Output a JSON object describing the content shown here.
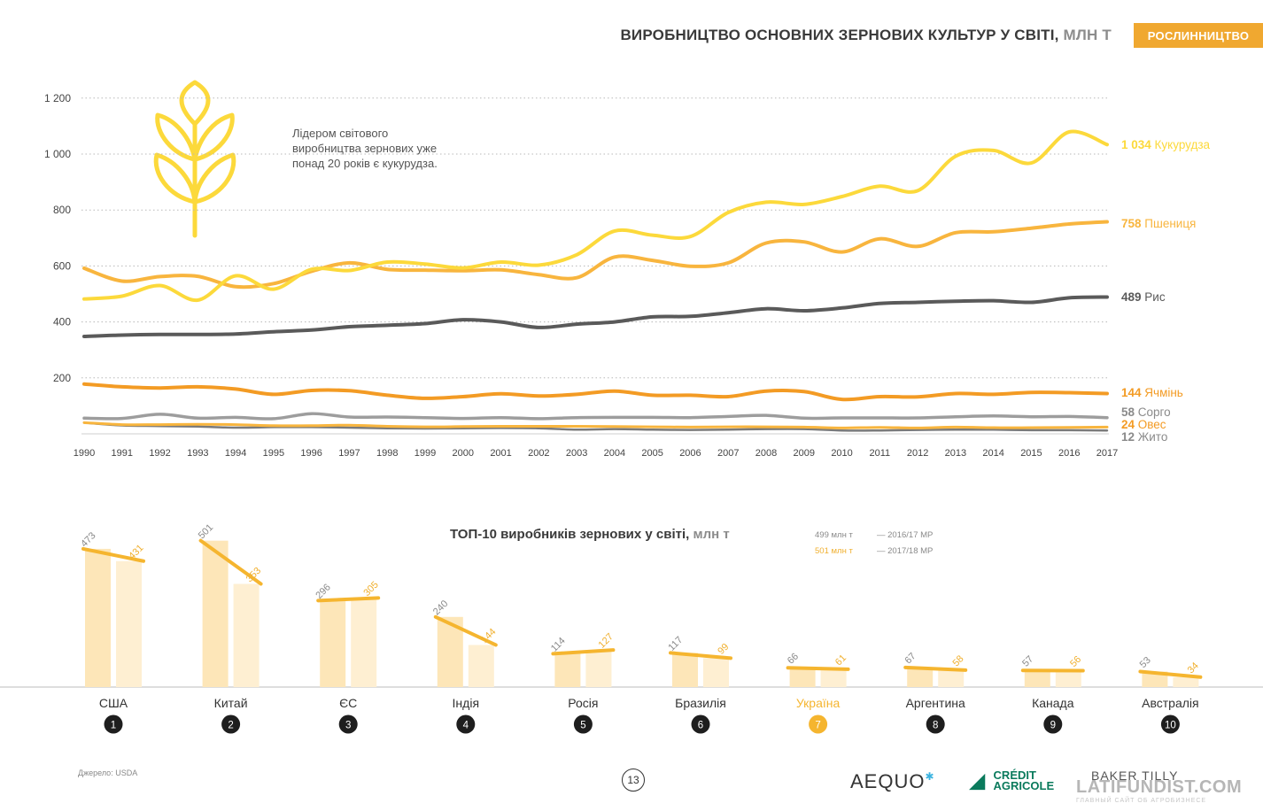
{
  "header": {
    "title": "ВИРОБНИЦТВО ОСНОВНИХ ЗЕРНОВИХ КУЛЬТУР У СВІТІ, ",
    "unit": "МЛН Т",
    "section_badge": "РОСЛИННИЦТВО"
  },
  "note": "Лідером світового виробництва зернових уже понад 20 років є кукурудза.",
  "icon": "wheat-icon",
  "colors": {
    "corn": "#fcd93b",
    "wheat": "#f8b53e",
    "rice": "#5a5a5a",
    "barley": "#f39b24",
    "sorghum": "#9d9d9d",
    "oats": "#f8b53e",
    "rye": "#7a7a7a",
    "bar_fill": "#fde3b0",
    "bar_fill_light": "#fff1d6",
    "accent": "#f0a830",
    "gray_label": "#8a8a8a"
  },
  "chart_data": [
    {
      "type": "line",
      "title": "ВИРОБНИЦТВО ОСНОВНИХ ЗЕРНОВИХ КУЛЬТУР У СВІТІ, МЛН Т",
      "x": [
        1990,
        1991,
        1992,
        1993,
        1994,
        1995,
        1996,
        1997,
        1998,
        1999,
        2000,
        2001,
        2002,
        2003,
        2004,
        2005,
        2006,
        2007,
        2008,
        2009,
        2010,
        2011,
        2012,
        2013,
        2014,
        2015,
        2016,
        2017
      ],
      "y_ticks": [
        "200",
        "400",
        "600",
        "800",
        "1 000",
        "1 200"
      ],
      "y_tick_values": [
        200,
        400,
        600,
        800,
        1000,
        1200
      ],
      "ylim": [
        0,
        1200
      ],
      "grid": "dotted horizontal",
      "series": [
        {
          "key": "corn",
          "name": "Кукурудза",
          "end_label_value": "1 034",
          "values": [
            482,
            492,
            530,
            478,
            565,
            517,
            588,
            584,
            614,
            607,
            593,
            614,
            603,
            640,
            725,
            710,
            705,
            791,
            828,
            820,
            848,
            885,
            869,
            992,
            1013,
            968,
            1079,
            1034
          ]
        },
        {
          "key": "wheat",
          "name": "Пшениця",
          "end_label_value": "758",
          "values": [
            592,
            546,
            562,
            563,
            526,
            537,
            581,
            611,
            588,
            585,
            583,
            586,
            569,
            558,
            632,
            620,
            599,
            611,
            682,
            686,
            650,
            697,
            670,
            719,
            722,
            735,
            750,
            758
          ]
        },
        {
          "key": "rice",
          "name": "Рис",
          "end_label_value": "489",
          "values": [
            348,
            353,
            355,
            355,
            357,
            365,
            371,
            383,
            388,
            394,
            408,
            400,
            380,
            392,
            400,
            418,
            420,
            433,
            447,
            440,
            450,
            466,
            470,
            474,
            476,
            470,
            486,
            489
          ]
        },
        {
          "key": "barley",
          "name": "Ячмінь",
          "end_label_value": "144",
          "values": [
            178,
            168,
            164,
            168,
            160,
            141,
            155,
            154,
            138,
            127,
            133,
            143,
            135,
            141,
            153,
            138,
            138,
            133,
            153,
            151,
            123,
            133,
            132,
            144,
            141,
            148,
            147,
            144
          ]
        },
        {
          "key": "sorghum",
          "name": "Сорго",
          "end_label_value": "58",
          "values": [
            56,
            55,
            70,
            56,
            59,
            54,
            72,
            60,
            60,
            58,
            55,
            58,
            54,
            58,
            59,
            59,
            58,
            62,
            66,
            56,
            57,
            57,
            57,
            61,
            64,
            61,
            62,
            58
          ]
        },
        {
          "key": "oats",
          "name": "Овес",
          "end_label_value": "24",
          "values": [
            40,
            33,
            33,
            34,
            33,
            29,
            29,
            31,
            27,
            25,
            26,
            27,
            27,
            27,
            26,
            25,
            24,
            25,
            25,
            24,
            21,
            23,
            21,
            24,
            22,
            22,
            23,
            24
          ]
        },
        {
          "key": "rye",
          "name": "Жито",
          "end_label_value": "12",
          "values": [
            40,
            30,
            28,
            26,
            22,
            24,
            24,
            22,
            20,
            19,
            20,
            21,
            20,
            15,
            17,
            15,
            14,
            15,
            17,
            17,
            12,
            12,
            14,
            15,
            15,
            13,
            13,
            12
          ]
        }
      ]
    },
    {
      "type": "bar",
      "title": "ТОП-10 виробників зернових у світі, ",
      "title_unit": "млн т",
      "legend": [
        {
          "value_label": "499 млн т",
          "period": "— 2016/17 МР"
        },
        {
          "value_label": "501 млн т",
          "period": "— 2017/18 МР"
        }
      ],
      "categories": [
        "США",
        "Китай",
        "ЄС",
        "Індія",
        "Росія",
        "Бразилія",
        "Україна",
        "Аргентина",
        "Канада",
        "Австралія"
      ],
      "ranks": [
        "1",
        "2",
        "3",
        "4",
        "5",
        "6",
        "7",
        "8",
        "9",
        "10"
      ],
      "highlight": "Україна",
      "series": [
        {
          "period": "2016/17 МР",
          "values": [
            473,
            501,
            296,
            240,
            114,
            117,
            66,
            67,
            57,
            53
          ]
        },
        {
          "period": "2017/18 МР",
          "values": [
            431,
            353,
            305,
            144,
            127,
            99,
            61,
            58,
            56,
            34
          ]
        }
      ]
    }
  ],
  "footer": {
    "source": "Джерело: USDA",
    "page": "13",
    "logos": [
      "AEQUO",
      "CRÉDIT AGRICOLE",
      "BAKER TILLY",
      "LATIFUNDIST.COM"
    ],
    "aequo": "AEQUO",
    "ca_line1": "CRÉDIT",
    "ca_line2": "AGRICOLE",
    "bt": "BAKER TILLY",
    "lat": "LATIFUNDIST.COM",
    "lat_sub": "ГЛАВНЫЙ САЙТ ОБ АГРОБИЗНЕСЕ"
  }
}
